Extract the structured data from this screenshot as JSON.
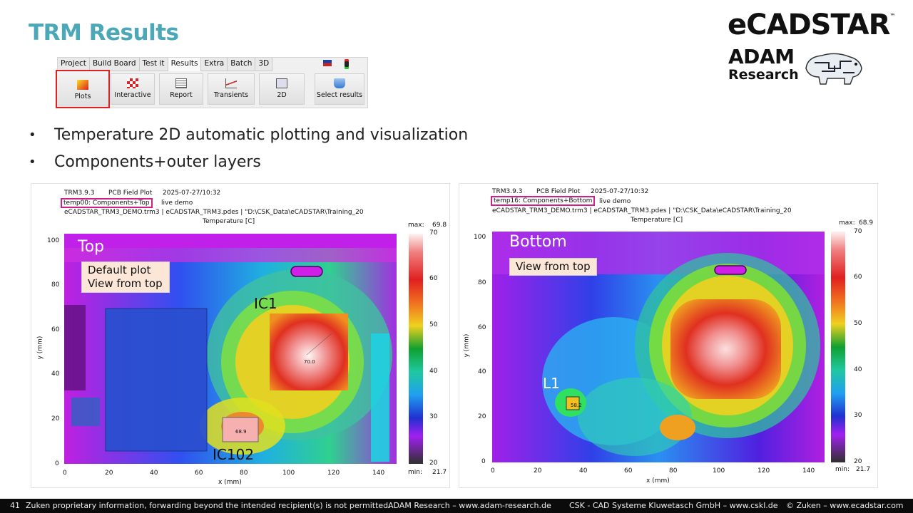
{
  "slide": {
    "title": "TRM Results",
    "bullets": [
      "Temperature 2D automatic plotting and visualization",
      "Components+outer layers"
    ]
  },
  "logos": {
    "ecadstar": "eCADSTAR",
    "tm": "™",
    "adam_line1": "ADAM",
    "adam_line2": "Research"
  },
  "ribbon": {
    "tabs": [
      "Project",
      "Build Board",
      "Test it",
      "Results",
      "Extra",
      "Batch",
      "3D"
    ],
    "active_tab": "Results",
    "buttons": [
      "Plots",
      "Interactive",
      "Report",
      "Transients",
      "2D",
      "Select results"
    ],
    "selected_button": "Plots"
  },
  "plot_left": {
    "version": "TRM3.9.3",
    "type": "PCB Field Plot",
    "timestamp": "2025-07-27/10:32",
    "case": "temp00: Components+Top",
    "demo": "live demo",
    "files": "eCADSTAR_TRM3_DEMO.trm3 | eCADSTAR_TRM3.pdes | \"D:\\CSK_Data\\eCADSTAR\\Training_20",
    "quantity": "Temperature [C]",
    "max_label": "max:",
    "max_value": "69.8",
    "min_label": "min:",
    "min_value": "21.7",
    "side_label": "Top",
    "note_line1": "Default plot",
    "note_line2": "View from top",
    "callout_a": "IC1",
    "callout_b": "IC102",
    "value_a": "70.0",
    "value_b": "68.9",
    "x_axis_label": "x (mm)",
    "y_axis_label": "y (mm)"
  },
  "plot_right": {
    "version": "TRM3.9.3",
    "type": "PCB Field Plot",
    "timestamp": "2025-07-27/10:32",
    "case": "temp16: Components+Bottom",
    "demo": "live demo",
    "files": "eCADSTAR_TRM3_DEMO.trm3 | eCADSTAR_TRM3.pdes | \"D:\\CSK_Data\\eCADSTAR\\Training_20",
    "quantity": "Temperature [C]",
    "max_label": "max:",
    "max_value": "68.9",
    "min_label": "min:",
    "min_value": "21.7",
    "side_label": "Bottom",
    "note_line1": "View from top",
    "callout_a": "L1",
    "value_a": "58.2",
    "x_axis_label": "x (mm)",
    "y_axis_label": "y (mm)"
  },
  "axes": {
    "x_ticks_left": [
      "0",
      "20",
      "40",
      "60",
      "80",
      "100",
      "120",
      "140"
    ],
    "x_ticks_right": [
      "0",
      "20",
      "40",
      "60",
      "80",
      "100",
      "120",
      "140"
    ],
    "y_ticks": [
      "100",
      "80",
      "60",
      "40",
      "20",
      "0"
    ],
    "cbar_ticks": [
      "70",
      "60",
      "50",
      "40",
      "30",
      "20"
    ]
  },
  "footer": {
    "page": "41",
    "notice": "Zuken proprietary information, forwarding beyond the intended recipient(s) is not permitted.",
    "adam": "ADAM Research – www.adam-research.de",
    "csk": "CSK - CAD Systeme Kluwetasch GmbH – www.cskl.de",
    "zuken": "© Zuken – www.ecadstar.com"
  }
}
